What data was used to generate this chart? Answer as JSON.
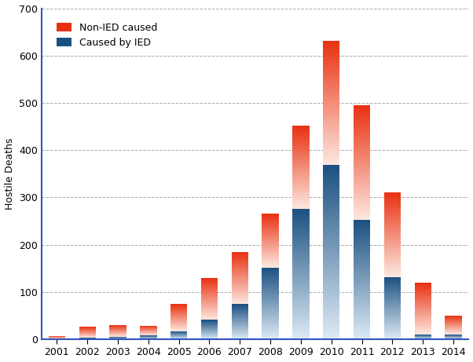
{
  "years": [
    2001,
    2002,
    2003,
    2004,
    2005,
    2006,
    2007,
    2008,
    2009,
    2010,
    2011,
    2012,
    2013,
    2014
  ],
  "ied": [
    1,
    3,
    5,
    8,
    17,
    41,
    74,
    152,
    275,
    368,
    252,
    132,
    10,
    10
  ],
  "non_ied": [
    6,
    23,
    25,
    21,
    57,
    89,
    111,
    113,
    176,
    263,
    243,
    179,
    109,
    40
  ],
  "ylim": [
    0,
    700
  ],
  "yticks": [
    0,
    100,
    200,
    300,
    400,
    500,
    600,
    700
  ],
  "ylabel": "Hostile Deaths",
  "ied_color_dark": "#1a5080",
  "ied_color_light": "#ddeaf5",
  "non_ied_color_dark": "#e83010",
  "non_ied_color_light": "#fde8e0",
  "legend_non_ied": "Non-IED caused",
  "legend_ied": "Caused by IED",
  "background_color": "#ffffff",
  "grid_color": "#aaaaaa",
  "bar_width": 0.55,
  "spine_color": "#3355bb",
  "figsize": [
    6.02,
    4.61
  ],
  "dpi": 100
}
